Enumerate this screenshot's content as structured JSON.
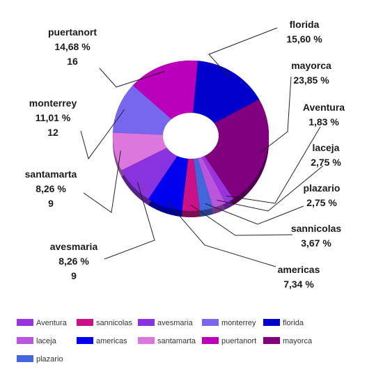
{
  "chart_data": {
    "type": "pie",
    "variant": "donut-3d",
    "legend_position": "bottom",
    "slices": [
      {
        "name": "florida",
        "percent": 15.6,
        "pct_label": "15,60 %",
        "count": null,
        "color": "#0000cc"
      },
      {
        "name": "mayorca",
        "percent": 23.85,
        "pct_label": "23,85 %",
        "count": null,
        "color": "#800080"
      },
      {
        "name": "Aventura",
        "percent": 1.83,
        "pct_label": "1,83 %",
        "count": null,
        "color": "#9933dd"
      },
      {
        "name": "laceja",
        "percent": 2.75,
        "pct_label": "2,75 %",
        "count": null,
        "color": "#bb55dd"
      },
      {
        "name": "plazario",
        "percent": 2.75,
        "pct_label": "2,75 %",
        "count": null,
        "color": "#4466dd"
      },
      {
        "name": "sannicolas",
        "percent": 3.67,
        "pct_label": "3,67 %",
        "count": null,
        "color": "#cc1188"
      },
      {
        "name": "americas",
        "percent": 7.34,
        "pct_label": "7,34 %",
        "count": null,
        "color": "#0000ee"
      },
      {
        "name": "avesmaria",
        "percent": 8.26,
        "pct_label": "8,26 %",
        "count": "9",
        "color": "#8833dd"
      },
      {
        "name": "santamarta",
        "percent": 8.26,
        "pct_label": "8,26 %",
        "count": "9",
        "color": "#dd77dd"
      },
      {
        "name": "monterrey",
        "percent": 11.01,
        "pct_label": "11,01 %",
        "count": "12",
        "color": "#7766ee"
      },
      {
        "name": "puertanort",
        "percent": 14.68,
        "pct_label": "14,68 %",
        "count": "16",
        "color": "#bb00bb"
      }
    ],
    "legend": [
      "Aventura",
      "sannicolas",
      "avesmaria",
      "monterrey",
      "florida",
      "laceja",
      "americas",
      "santamarta",
      "puertanort",
      "mayorca",
      "plazario"
    ]
  }
}
